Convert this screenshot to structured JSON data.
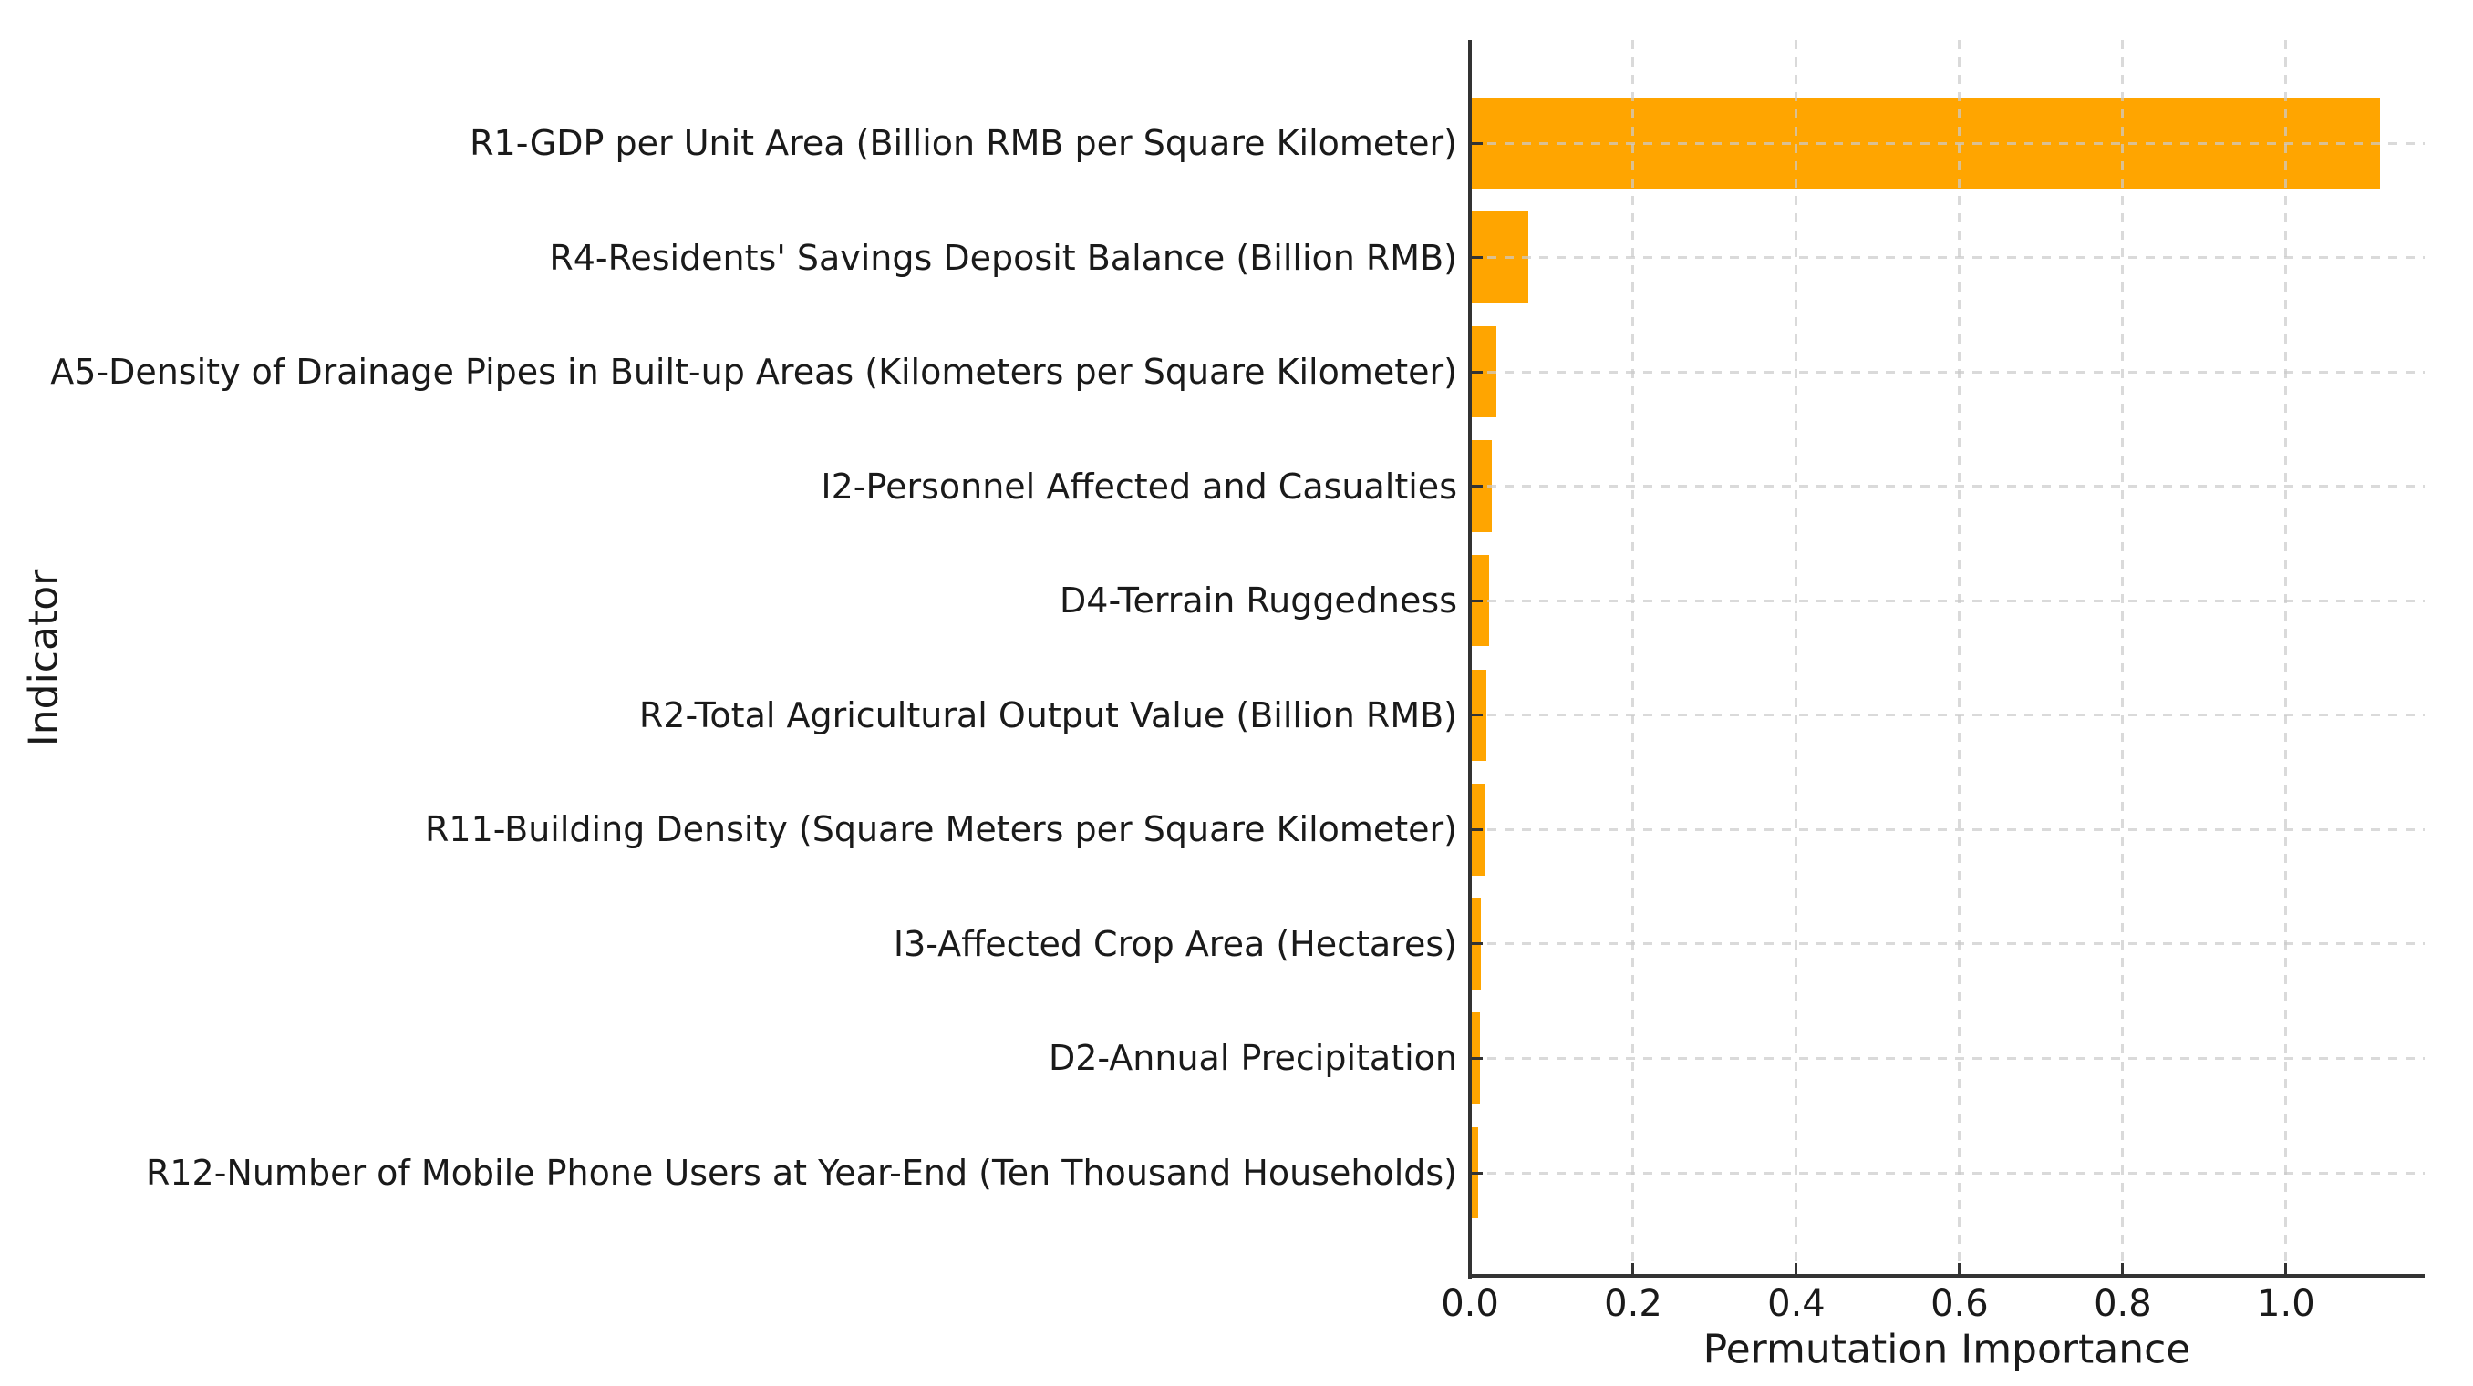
{
  "chart_data": {
    "type": "bar",
    "orientation": "horizontal",
    "title": "",
    "xlabel": "Permutation Importance",
    "ylabel": "Indicator",
    "categories": [
      "R1-GDP per Unit Area (Billion RMB per Square Kilometer)",
      "R4-Residents' Savings Deposit Balance (Billion RMB)",
      "A5-Density of Drainage Pipes in Built-up Areas (Kilometers per Square Kilometer)",
      "I2-Personnel Affected and Casualties",
      "D4-Terrain Ruggedness",
      "R2-Total Agricultural Output Value (Billion RMB)",
      "R11-Building Density (Square Meters per Square Kilometer)",
      "I3-Affected Crop Area (Hectares)",
      "D2-Annual Precipitation",
      "R12-Number of Mobile Phone Users at Year-End (Ten Thousand Households)"
    ],
    "values": [
      1.115,
      0.072,
      0.032,
      0.027,
      0.023,
      0.02,
      0.019,
      0.013,
      0.012,
      0.01
    ],
    "xlim": [
      0,
      1.17
    ],
    "xticks": [
      0.0,
      0.2,
      0.4,
      0.6,
      0.8,
      1.0
    ],
    "xtick_labels": [
      "0.0",
      "0.2",
      "0.4",
      "0.6",
      "0.8",
      "1.0"
    ],
    "grid": "dashed vertical and horizontal gridlines",
    "legend": "none",
    "bar_color": "#FFA500"
  },
  "colors": {
    "bar": "#FFA500",
    "axis": "#333333",
    "text": "#1a1a1a",
    "grid": "#d4d4d4",
    "background": "#ffffff"
  }
}
